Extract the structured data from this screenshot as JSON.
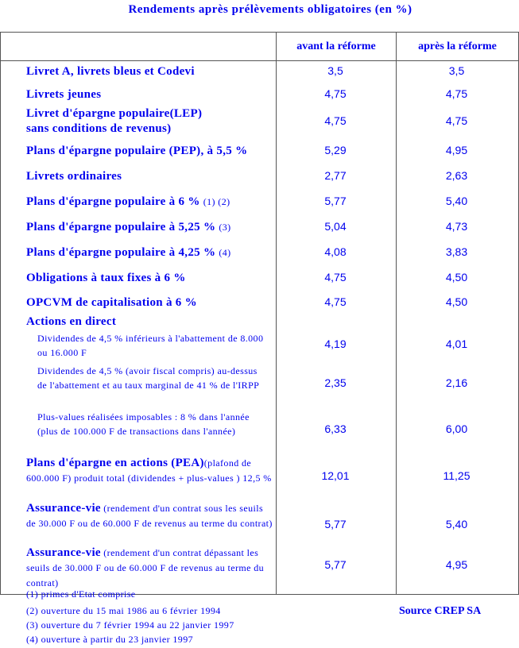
{
  "title": "Rendements après prélèvements obligatoires (en %)",
  "headers": {
    "before": "avant la réforme",
    "after": "après la réforme"
  },
  "rows": [
    {
      "label": "Livret A, livrets bleus et Codevi",
      "before": "3,5",
      "after": "3,5"
    },
    {
      "label": "Livrets jeunes",
      "before": "4,75",
      "after": "4,75"
    },
    {
      "label": "Livret d'épargne populaire(LEP)",
      "label2": "sans conditions de revenus)",
      "before": "4,75",
      "after": "4,75"
    },
    {
      "label": "Plans d'épargne populaire (PEP), à 5,5 %",
      "before": "5,29",
      "after": "4,95"
    },
    {
      "label": "Livrets ordinaires",
      "before": "2,77",
      "after": "2,63"
    },
    {
      "label": "Plans d'épargne populaire à 6 %",
      "note": "(1) (2)",
      "before": "5,77",
      "after": "5,40"
    },
    {
      "label": "Plans d'épargne populaire à 5,25 %",
      "note": "(3)",
      "before": "5,04",
      "after": "4,73"
    },
    {
      "label": "Plans d'épargne populaire à 4,25 %",
      "note": "(4)",
      "before": "4,08",
      "after": "3,83"
    },
    {
      "label": "Obligations à taux fixes à 6 %",
      "before": "4,75",
      "after": "4,50"
    },
    {
      "label": "OPCVM de capitalisation à 6 %",
      "before": "4,75",
      "after": "4,50"
    },
    {
      "label": "Actions en direct"
    },
    {
      "label": "Dividendes de 4,5 % inférieurs à l'abattement de 8.000 ou 16.000 F",
      "before": "4,19",
      "after": "4,01"
    },
    {
      "label": "Dividendes de 4,5 % (avoir fiscal compris) au-dessus de l'abattement et au taux marginal de 41 % de l'IRPP",
      "before": "2,35",
      "after": "2,16"
    },
    {
      "label": "Plus-values réalisées imposables : 8 % dans l'année (plus de 100.000 F de transactions dans l'année)",
      "before": "6,33",
      "after": "6,00"
    },
    {
      "label": "Plans d'épargne en actions (PEA)",
      "detail": "(plafond de 600.000 F) produit total (dividendes + plus-values ) 12,5 %",
      "before": "12,01",
      "after": "11,25"
    },
    {
      "label": "Assurance-vie",
      "detail": " (rendement d'un contrat sous les seuils de 30.000 F ou de 60.000 F de revenus au terme du contrat)",
      "before": "5,77",
      "after": "5,40"
    },
    {
      "label": "Assurance-vie",
      "detail": " (rendement d'un contrat dépassant les seuils de 30.000 F ou de 60.000 F de revenus au terme du contrat)",
      "before": "5,77",
      "after": "4,95"
    }
  ],
  "footnotes": [
    "(1) primes d'Etat comprise",
    "(2) ouverture du 15 mai 1986 au 6 février 1994",
    "(3) ouverture du 7 février 1994 au 22 janvier 1997",
    "(4) ouverture à partir du 23 janvier 1997"
  ],
  "source": "Source CREP SA",
  "colors": {
    "text": "#0000ee",
    "border": "#555555"
  }
}
